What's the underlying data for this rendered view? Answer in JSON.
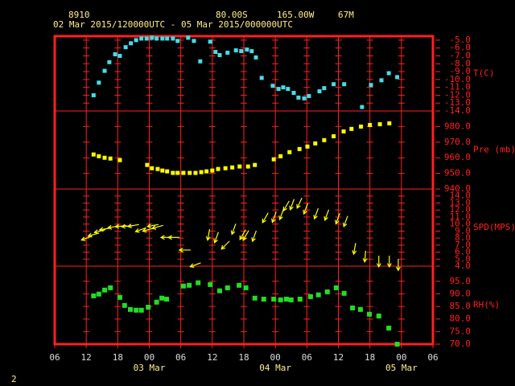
{
  "header": {
    "station": "8910",
    "lat": "80.00S",
    "lon": "165.00W",
    "elev": "67M",
    "period": "02 Mar 2015/120000UTC - 05 Mar 2015/000000UTC",
    "page": "2"
  },
  "x_axis": {
    "xlim": [
      0,
      72
    ],
    "xticks": [
      {
        "value": 0,
        "label": "06"
      },
      {
        "value": 6,
        "label": "12"
      },
      {
        "value": 12,
        "label": "18"
      },
      {
        "value": 18,
        "label": "00"
      },
      {
        "value": 24,
        "label": "06"
      },
      {
        "value": 30,
        "label": "12"
      },
      {
        "value": 36,
        "label": "18"
      },
      {
        "value": 42,
        "label": "00"
      },
      {
        "value": 48,
        "label": "06"
      },
      {
        "value": 54,
        "label": "12"
      },
      {
        "value": 60,
        "label": "18"
      },
      {
        "value": 66,
        "label": "00"
      },
      {
        "value": 72,
        "label": "06"
      }
    ],
    "date_labels": [
      {
        "value": 18,
        "label": "03 Mar"
      },
      {
        "value": 42,
        "label": "04 Mar"
      },
      {
        "value": 66,
        "label": "05 Mar"
      }
    ]
  },
  "chart_data": [
    {
      "type": "scatter",
      "ylabel": "T(C)",
      "color": "#44dde8",
      "ylim": [
        -14,
        -4.5
      ],
      "yticks": [
        {
          "value": -5,
          "label": "-5.0"
        },
        {
          "value": -6,
          "label": "-6.0"
        },
        {
          "value": -7,
          "label": "-7.0"
        },
        {
          "value": -8,
          "label": "-8.0"
        },
        {
          "value": -9,
          "label": "-9.0"
        },
        {
          "value": -10,
          "label": "-10.0"
        },
        {
          "value": -11,
          "label": "-11.0"
        },
        {
          "value": -12,
          "label": "-12.0"
        },
        {
          "value": -13,
          "label": "-13.0"
        },
        {
          "value": -14,
          "label": "-14.0"
        }
      ],
      "x": [
        7.4,
        8.4,
        9.5,
        10.4,
        11.5,
        12.4,
        13.5,
        14.5,
        15.5,
        16.5,
        17.5,
        18.5,
        19.4,
        20.5,
        21.4,
        22.5,
        23.4,
        25.4,
        26.5,
        27.7,
        29.6,
        30.6,
        31.4,
        32.9,
        34.5,
        35.5,
        36.6,
        37.5,
        38.3,
        39.4,
        41.5,
        42.6,
        43.5,
        44.4,
        45.5,
        46.4,
        47.5,
        48.4,
        50.4,
        51.3,
        53.1,
        55.1,
        58.5,
        60.2,
        62.2,
        63.6,
        65.2
      ],
      "values": [
        -12.0,
        -10.4,
        -8.9,
        -7.8,
        -6.8,
        -7.0,
        -5.9,
        -5.4,
        -5.0,
        -4.8,
        -4.8,
        -4.7,
        -4.8,
        -4.8,
        -4.8,
        -4.8,
        -5.1,
        -4.7,
        -5.1,
        -7.7,
        -5.2,
        -6.5,
        -6.9,
        -6.6,
        -6.3,
        -6.4,
        -6.2,
        -6.4,
        -7.2,
        -9.8,
        -10.8,
        -11.2,
        -11.0,
        -11.2,
        -11.7,
        -12.3,
        -12.4,
        -12.1,
        -11.5,
        -11.1,
        -10.6,
        -10.6,
        -13.5,
        -10.7,
        -10.1,
        -9.2,
        -9.7
      ]
    },
    {
      "type": "scatter",
      "ylabel": "Pre (mb)",
      "color": "#ffff00",
      "ylim": [
        940,
        990
      ],
      "yticks": [
        {
          "value": 980,
          "label": "980.0"
        },
        {
          "value": 970,
          "label": "970.0"
        },
        {
          "value": 960,
          "label": "960.0"
        },
        {
          "value": 950,
          "label": "950.0"
        },
        {
          "value": 940,
          "label": "940.0"
        }
      ],
      "x": [
        7.4,
        8.4,
        9.5,
        10.6,
        12.4,
        17.6,
        18.5,
        19.6,
        20.5,
        21.4,
        22.5,
        23.4,
        24.5,
        25.7,
        26.8,
        27.9,
        28.9,
        30.0,
        31.1,
        32.5,
        33.8,
        35.2,
        36.8,
        38.1,
        41.7,
        43.0,
        44.7,
        46.6,
        48.1,
        49.6,
        51.3,
        53.1,
        55.0,
        56.5,
        58.3,
        60.0,
        61.9,
        63.7
      ],
      "values": [
        962.1,
        961.0,
        960.0,
        959.5,
        958.5,
        955.4,
        953.3,
        952.8,
        951.8,
        951.3,
        950.3,
        950.3,
        950.3,
        950.3,
        950.3,
        950.8,
        951.3,
        951.8,
        952.8,
        953.3,
        953.8,
        954.4,
        954.4,
        955.4,
        959.0,
        961.0,
        963.6,
        965.6,
        967.2,
        969.2,
        971.3,
        973.8,
        976.9,
        978.5,
        980.0,
        981.0,
        981.5,
        982.1
      ]
    },
    {
      "type": "arrow",
      "ylabel": "SPD(MPS)",
      "color": "#ffff00",
      "ylim": [
        4,
        15
      ],
      "yticks": [
        {
          "value": 14,
          "label": "14.0"
        },
        {
          "value": 13,
          "label": "13.0"
        },
        {
          "value": 12,
          "label": "12.0"
        },
        {
          "value": 11,
          "label": "11.0"
        },
        {
          "value": 10,
          "label": "10.0"
        },
        {
          "value": 9,
          "label": "9.0"
        },
        {
          "value": 8,
          "label": "8.0"
        },
        {
          "value": 7,
          "label": "7.0"
        },
        {
          "value": 6,
          "label": "6.0"
        },
        {
          "value": 5,
          "label": "5.0"
        },
        {
          "value": 4,
          "label": "4.0"
        }
      ],
      "x": [
        6.1,
        7.4,
        8.6,
        9.6,
        11.2,
        12.6,
        13.8,
        15.0,
        16.4,
        17.8,
        18.7,
        19.6,
        21.3,
        22.7,
        24.8,
        26.8,
        29.3,
        30.8,
        32.5,
        34.1,
        35.8,
        36.4,
        38.0,
        40.1,
        41.8,
        43.2,
        44.1,
        45.2,
        46.6,
        47.8,
        49.8,
        51.8,
        53.9,
        55.4,
        57.1,
        59.1,
        61.7,
        63.7,
        65.4
      ],
      "values": [
        8.0,
        8.5,
        9.0,
        9.3,
        9.6,
        9.7,
        9.7,
        9.8,
        9.2,
        9.2,
        9.8,
        9.6,
        8.1,
        8.1,
        6.3,
        4.2,
        8.5,
        8.1,
        7.0,
        9.3,
        8.5,
        8.4,
        8.3,
        10.9,
        11.0,
        11.4,
        12.6,
        12.8,
        13.0,
        12.2,
        11.5,
        11.3,
        10.8,
        10.4,
        6.5,
        5.4,
        4.7,
        4.7,
        4.2
      ],
      "directions": [
        250,
        255,
        255,
        260,
        260,
        265,
        265,
        260,
        250,
        255,
        260,
        255,
        270,
        270,
        270,
        250,
        190,
        200,
        225,
        200,
        210,
        210,
        200,
        210,
        200,
        200,
        210,
        200,
        205,
        200,
        200,
        200,
        200,
        200,
        190,
        185,
        180,
        180,
        180
      ]
    },
    {
      "type": "scatter",
      "ylabel": "RH(%)",
      "color": "#22dd22",
      "ylim": [
        70,
        101
      ],
      "yticks": [
        {
          "value": 95,
          "label": "95.0"
        },
        {
          "value": 90,
          "label": "90.0"
        },
        {
          "value": 85,
          "label": "85.0"
        },
        {
          "value": 80,
          "label": "80.0"
        },
        {
          "value": 75,
          "label": "75.0"
        },
        {
          "value": 70,
          "label": "70.0"
        }
      ],
      "x": [
        7.4,
        8.4,
        9.5,
        10.6,
        12.4,
        13.3,
        14.4,
        15.5,
        16.5,
        17.8,
        19.4,
        20.4,
        21.3,
        24.5,
        25.6,
        27.3,
        29.6,
        31.4,
        32.9,
        35.1,
        36.4,
        38.1,
        39.8,
        41.7,
        43.0,
        44.1,
        45.0,
        46.7,
        48.7,
        50.2,
        51.9,
        53.6,
        55.1,
        56.7,
        58.2,
        59.9,
        61.7,
        63.6,
        65.2
      ],
      "values": [
        89.2,
        89.9,
        91.5,
        92.4,
        88.6,
        85.4,
        83.8,
        83.5,
        83.5,
        84.7,
        86.7,
        88.3,
        87.9,
        93.1,
        93.4,
        94.4,
        93.7,
        91.2,
        92.4,
        93.4,
        92.4,
        88.3,
        87.9,
        87.9,
        87.6,
        87.9,
        87.6,
        87.9,
        88.9,
        89.6,
        90.8,
        92.4,
        90.2,
        84.4,
        83.8,
        81.9,
        81.2,
        76.4,
        70.0
      ]
    }
  ]
}
